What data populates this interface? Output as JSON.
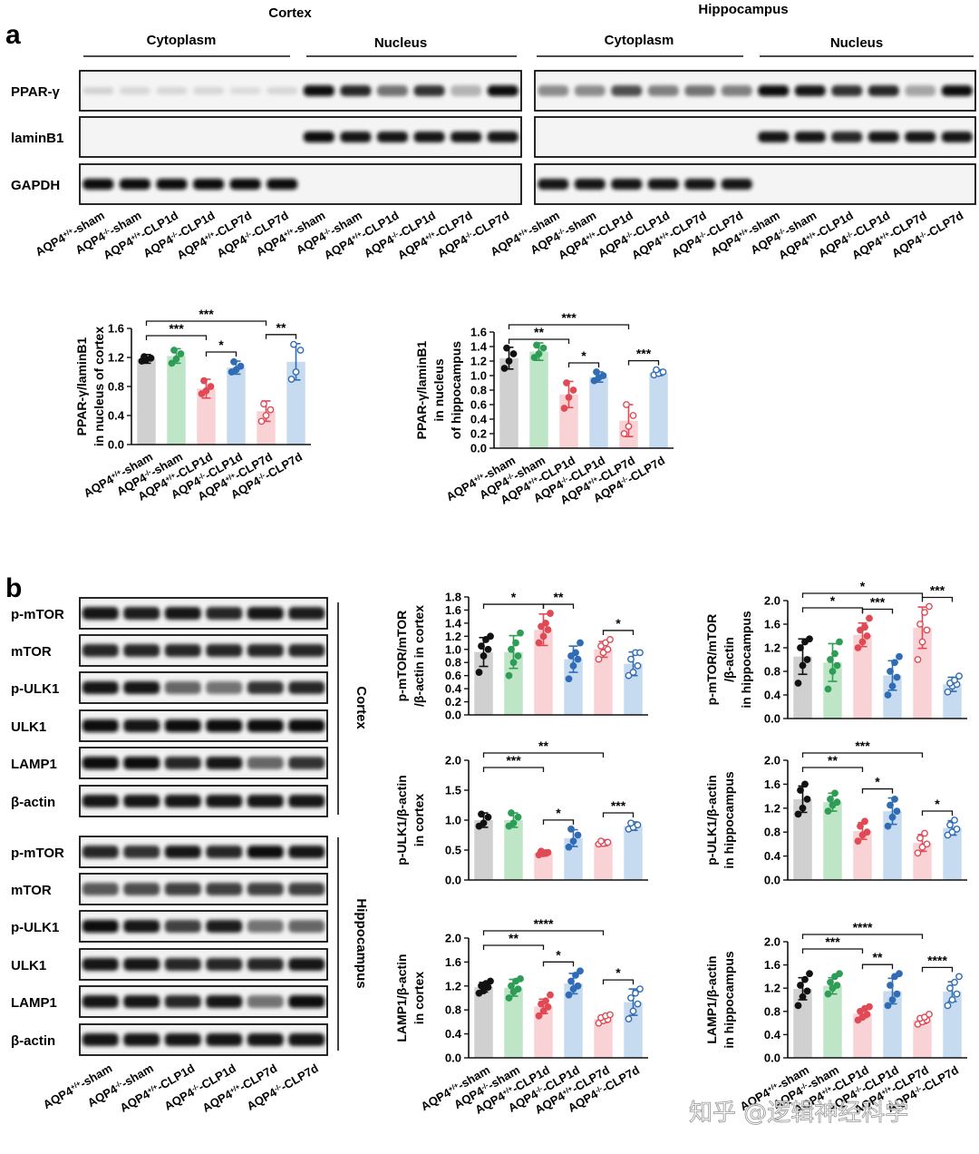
{
  "panel_a": {
    "label": "a",
    "blot": {
      "region_cortex": "Cortex",
      "region_hippocampus": "Hippocampus",
      "sub_cytoplasm": "Cytoplasm",
      "sub_nucleus": "Nucleus",
      "rows": [
        "PPAR-γ",
        "laminB1",
        "GAPDH"
      ],
      "lanes": [
        {
          "base": "AQP4",
          "sup": "+/+",
          "suffix": "-sham"
        },
        {
          "base": "AQP4",
          "sup": "-/-",
          "suffix": "-sham"
        },
        {
          "base": "AQP4",
          "sup": "+/+",
          "suffix": "-CLP1d"
        },
        {
          "base": "AQP4",
          "sup": "-/-",
          "suffix": "-CLP1d"
        },
        {
          "base": "AQP4",
          "sup": "+/+",
          "suffix": "-CLP7d"
        },
        {
          "base": "AQP4",
          "sup": "-/-",
          "suffix": "-CLP7d"
        }
      ]
    }
  },
  "panel_b": {
    "label": "b",
    "blot": {
      "cortex_rows": [
        "p-mTOR",
        "mTOR",
        "p-ULK1",
        "ULK1",
        "LAMP1",
        "β-actin"
      ],
      "hippocampus_rows": [
        "p-mTOR",
        "mTOR",
        "p-ULK1",
        "ULK1",
        "LAMP1",
        "β-actin"
      ],
      "label_cortex": "Cortex",
      "label_hippocampus": "Hippocampus"
    }
  },
  "groups": [
    {
      "base": "AQP4",
      "sup": "+/+",
      "suffix": "-sham"
    },
    {
      "base": "AQP4",
      "sup": "-/-",
      "suffix": "-sham"
    },
    {
      "base": "AQP4",
      "sup": "+/+",
      "suffix": "-CLP1d"
    },
    {
      "base": "AQP4",
      "sup": "-/-",
      "suffix": "-CLP1d"
    },
    {
      "base": "AQP4",
      "sup": "+/+",
      "suffix": "-CLP7d"
    },
    {
      "base": "AQP4",
      "sup": "-/-",
      "suffix": "-CLP7d"
    }
  ],
  "colors": {
    "bar_fill": [
      "#d0d0d0",
      "#bfe5c7",
      "#f9d2d5",
      "#c6daf0",
      "#f9d2d5",
      "#c6daf0"
    ],
    "point": [
      "#111111",
      "#2e9d55",
      "#e04a55",
      "#2f6cb5",
      "#e04a55",
      "#2f6cb5"
    ],
    "point_open": [
      false,
      false,
      false,
      false,
      true,
      true
    ]
  },
  "watermark": "知乎 @逻辑神经科学",
  "chart_data": [
    {
      "type": "bar",
      "ylabel": [
        "PPAR-γ/laminB1",
        "in nucleus of cortex"
      ],
      "ylim": [
        0,
        1.6
      ],
      "yticks": [
        0,
        0.4,
        0.8,
        1.2,
        1.6
      ],
      "values": [
        1.18,
        1.22,
        0.77,
        1.06,
        0.46,
        1.14
      ],
      "errors": [
        0.06,
        0.1,
        0.13,
        0.09,
        0.14,
        0.25
      ],
      "points": [
        [
          1.15,
          1.17,
          1.19,
          1.21
        ],
        [
          1.12,
          1.18,
          1.25,
          1.3
        ],
        [
          0.7,
          0.74,
          0.8,
          0.88
        ],
        [
          1.0,
          1.03,
          1.08,
          1.14
        ],
        [
          0.32,
          0.4,
          0.48,
          0.56
        ],
        [
          0.9,
          1.0,
          1.3,
          1.38
        ]
      ],
      "brackets": [
        {
          "from": 0,
          "to": 2,
          "label": "***"
        },
        {
          "from": 0,
          "to": 4,
          "label": "***"
        },
        {
          "from": 2,
          "to": 3,
          "label": "*"
        },
        {
          "from": 4,
          "to": 5,
          "label": "**"
        }
      ]
    },
    {
      "type": "bar",
      "ylabel": [
        "PPAR-γ/laminB1",
        "in nucleus",
        "of hippocampus"
      ],
      "ylim": [
        0,
        1.6
      ],
      "yticks": [
        0,
        0.2,
        0.4,
        0.6,
        0.8,
        1.0,
        1.2,
        1.4,
        1.6
      ],
      "values": [
        1.24,
        1.33,
        0.74,
        0.98,
        0.38,
        1.04
      ],
      "errors": [
        0.15,
        0.12,
        0.18,
        0.07,
        0.22,
        0.04
      ],
      "points": [
        [
          1.1,
          1.2,
          1.3,
          1.38
        ],
        [
          1.25,
          1.3,
          1.38,
          1.42
        ],
        [
          0.55,
          0.7,
          0.8,
          0.9
        ],
        [
          0.93,
          0.97,
          1.0,
          1.05
        ],
        [
          0.2,
          0.3,
          0.45,
          0.6
        ],
        [
          1.01,
          1.03,
          1.05,
          1.08
        ]
      ],
      "brackets": [
        {
          "from": 0,
          "to": 2,
          "label": "**"
        },
        {
          "from": 0,
          "to": 4,
          "label": "***"
        },
        {
          "from": 2,
          "to": 3,
          "label": "*"
        },
        {
          "from": 4,
          "to": 5,
          "label": "***"
        }
      ]
    },
    {
      "type": "bar",
      "ylabel": [
        "p-mTOR/mTOR",
        "/β-actin in cortex"
      ],
      "ylim": [
        0,
        1.8
      ],
      "yticks": [
        0,
        0.2,
        0.4,
        0.6,
        0.8,
        1.0,
        1.2,
        1.4,
        1.6,
        1.8
      ],
      "values": [
        0.96,
        0.96,
        1.3,
        0.85,
        1.0,
        0.78
      ],
      "errors": [
        0.22,
        0.25,
        0.24,
        0.2,
        0.12,
        0.18
      ],
      "points": [
        [
          0.65,
          0.9,
          1.0,
          1.05,
          1.15,
          1.2
        ],
        [
          0.6,
          0.8,
          0.9,
          1.0,
          1.1,
          1.25
        ],
        [
          1.1,
          1.2,
          1.3,
          1.35,
          1.4,
          1.55
        ],
        [
          0.55,
          0.75,
          0.85,
          0.9,
          0.95,
          1.1
        ],
        [
          0.85,
          0.95,
          1.0,
          1.05,
          1.1,
          1.15
        ],
        [
          0.6,
          0.65,
          0.75,
          0.85,
          0.95,
          0.95
        ]
      ],
      "brackets": [
        {
          "from": 0,
          "to": 2,
          "label": "*"
        },
        {
          "from": 2,
          "to": 3,
          "label": "**"
        },
        {
          "from": 4,
          "to": 5,
          "label": "*"
        }
      ]
    },
    {
      "type": "bar",
      "ylabel": [
        "p-mTOR/mTOR",
        "/β-actin",
        "in hippocampus"
      ],
      "ylim": [
        0,
        2.0
      ],
      "yticks": [
        0,
        0.4,
        0.8,
        1.2,
        1.6,
        2.0
      ],
      "values": [
        1.05,
        0.95,
        1.42,
        0.73,
        1.54,
        0.58
      ],
      "errors": [
        0.3,
        0.32,
        0.2,
        0.25,
        0.35,
        0.12
      ],
      "points": [
        [
          0.6,
          0.9,
          1.0,
          1.2,
          1.3,
          1.35
        ],
        [
          0.5,
          0.8,
          0.9,
          1.0,
          1.1,
          1.3
        ],
        [
          1.2,
          1.3,
          1.4,
          1.5,
          1.55,
          1.7
        ],
        [
          0.4,
          0.55,
          0.7,
          0.8,
          0.95,
          1.05
        ],
        [
          1.0,
          1.3,
          1.5,
          1.6,
          1.8,
          1.9
        ],
        [
          0.45,
          0.55,
          0.58,
          0.6,
          0.65,
          0.72
        ]
      ],
      "brackets": [
        {
          "from": 0,
          "to": 2,
          "label": "*"
        },
        {
          "from": 0,
          "to": 4,
          "label": "*"
        },
        {
          "from": 2,
          "to": 3,
          "label": "***"
        },
        {
          "from": 4,
          "to": 5,
          "label": "***"
        }
      ]
    },
    {
      "type": "bar",
      "ylabel": [
        "p-ULK1/β-actin",
        "in cortex"
      ],
      "ylim": [
        0,
        2.0
      ],
      "yticks": [
        0,
        0.5,
        1.0,
        1.5,
        2.0
      ],
      "values": [
        1.0,
        1.0,
        0.45,
        0.7,
        0.62,
        0.9
      ],
      "errors": [
        0.12,
        0.12,
        0.05,
        0.14,
        0.05,
        0.07
      ],
      "points": [
        [
          0.9,
          0.95,
          1.05,
          1.1
        ],
        [
          0.9,
          0.95,
          1.05,
          1.12
        ],
        [
          0.42,
          0.44,
          0.46,
          0.48
        ],
        [
          0.55,
          0.65,
          0.75,
          0.85
        ],
        [
          0.6,
          0.61,
          0.63,
          0.65
        ],
        [
          0.85,
          0.88,
          0.92,
          0.95
        ]
      ],
      "brackets": [
        {
          "from": 0,
          "to": 2,
          "label": "***"
        },
        {
          "from": 0,
          "to": 4,
          "label": "**"
        },
        {
          "from": 2,
          "to": 3,
          "label": "*"
        },
        {
          "from": 4,
          "to": 5,
          "label": "***"
        }
      ]
    },
    {
      "type": "bar",
      "ylabel": [
        "p-ULK1/β-actin",
        "in hippocampus"
      ],
      "ylim": [
        0,
        2.0
      ],
      "yticks": [
        0,
        0.4,
        0.8,
        1.2,
        1.6,
        2.0
      ],
      "values": [
        1.35,
        1.3,
        0.82,
        1.15,
        0.62,
        0.87
      ],
      "errors": [
        0.22,
        0.15,
        0.14,
        0.22,
        0.14,
        0.12
      ],
      "points": [
        [
          1.1,
          1.2,
          1.35,
          1.5,
          1.6
        ],
        [
          1.15,
          1.25,
          1.3,
          1.35,
          1.45
        ],
        [
          0.65,
          0.75,
          0.8,
          0.9,
          0.98
        ],
        [
          0.9,
          1.05,
          1.15,
          1.25,
          1.35
        ],
        [
          0.45,
          0.55,
          0.6,
          0.7,
          0.78
        ],
        [
          0.75,
          0.8,
          0.85,
          0.92,
          1.0
        ]
      ],
      "brackets": [
        {
          "from": 0,
          "to": 2,
          "label": "**"
        },
        {
          "from": 0,
          "to": 4,
          "label": "***"
        },
        {
          "from": 2,
          "to": 3,
          "label": "*"
        },
        {
          "from": 4,
          "to": 5,
          "label": "*"
        }
      ]
    },
    {
      "type": "bar",
      "ylabel": [
        "LAMP1/β-actin",
        "in cortex"
      ],
      "ylim": [
        0,
        2.0
      ],
      "yticks": [
        0,
        0.4,
        0.8,
        1.2,
        1.6,
        2.0
      ],
      "values": [
        1.18,
        1.17,
        0.86,
        1.24,
        0.65,
        0.93
      ],
      "errors": [
        0.08,
        0.14,
        0.12,
        0.17,
        0.06,
        0.22
      ],
      "points": [
        [
          1.08,
          1.12,
          1.18,
          1.2,
          1.24,
          1.28
        ],
        [
          1.0,
          1.1,
          1.15,
          1.2,
          1.28,
          1.32
        ],
        [
          0.7,
          0.78,
          0.85,
          0.9,
          0.95,
          1.05
        ],
        [
          1.05,
          1.15,
          1.2,
          1.28,
          1.38,
          1.45
        ],
        [
          0.58,
          0.62,
          0.64,
          0.67,
          0.7,
          0.72
        ],
        [
          0.65,
          0.78,
          0.9,
          1.0,
          1.08,
          1.15
        ]
      ],
      "brackets": [
        {
          "from": 0,
          "to": 2,
          "label": "**"
        },
        {
          "from": 0,
          "to": 4,
          "label": "****"
        },
        {
          "from": 2,
          "to": 3,
          "label": "*"
        },
        {
          "from": 4,
          "to": 5,
          "label": "*"
        }
      ]
    },
    {
      "type": "bar",
      "ylabel": [
        "LAMP1/β-actin",
        "in hippocampus"
      ],
      "ylim": [
        0,
        2.0
      ],
      "yticks": [
        0,
        0.4,
        0.8,
        1.2,
        1.6,
        2.0
      ],
      "values": [
        1.19,
        1.24,
        0.76,
        1.15,
        0.65,
        1.14
      ],
      "errors": [
        0.19,
        0.14,
        0.07,
        0.22,
        0.06,
        0.17
      ],
      "points": [
        [
          0.9,
          1.05,
          1.15,
          1.25,
          1.35,
          1.45
        ],
        [
          1.1,
          1.2,
          1.25,
          1.3,
          1.4,
          1.45
        ],
        [
          0.65,
          0.7,
          0.75,
          0.8,
          0.85,
          0.88
        ],
        [
          0.9,
          1.0,
          1.1,
          1.25,
          1.4,
          1.45
        ],
        [
          0.58,
          0.62,
          0.65,
          0.68,
          0.7,
          0.75
        ],
        [
          0.9,
          1.0,
          1.1,
          1.2,
          1.3,
          1.4
        ]
      ],
      "brackets": [
        {
          "from": 0,
          "to": 2,
          "label": "***"
        },
        {
          "from": 0,
          "to": 4,
          "label": "****"
        },
        {
          "from": 2,
          "to": 3,
          "label": "**"
        },
        {
          "from": 4,
          "to": 5,
          "label": "****"
        }
      ]
    }
  ]
}
